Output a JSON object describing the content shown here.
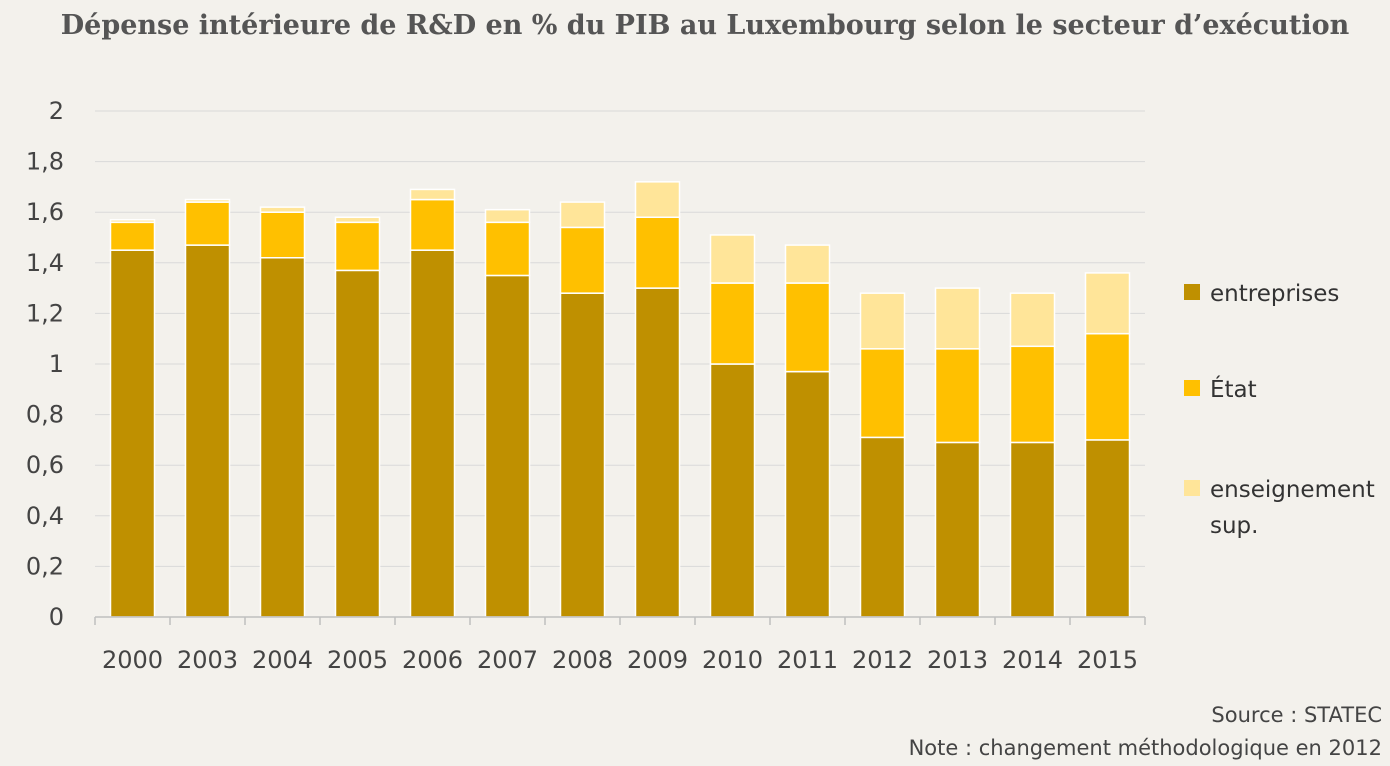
{
  "chart_data": {
    "type": "bar",
    "stacked": true,
    "title": "Dépense intérieure de R&D en % du PIB au Luxembourg selon le secteur d’exécution",
    "categories": [
      "2000",
      "2003",
      "2004",
      "2005",
      "2006",
      "2007",
      "2008",
      "2009",
      "2010",
      "2011",
      "2012",
      "2013",
      "2014",
      "2015"
    ],
    "series": [
      {
        "name": "entreprises",
        "color": "#bf9000",
        "values": [
          1.45,
          1.47,
          1.42,
          1.37,
          1.45,
          1.35,
          1.28,
          1.3,
          1.0,
          0.97,
          0.71,
          0.69,
          0.69,
          0.7
        ]
      },
      {
        "name": "État",
        "color": "#ffc000",
        "values": [
          0.11,
          0.17,
          0.18,
          0.19,
          0.2,
          0.21,
          0.26,
          0.28,
          0.32,
          0.35,
          0.35,
          0.37,
          0.38,
          0.42
        ]
      },
      {
        "name": "enseignement sup.",
        "color": "#ffe599",
        "values": [
          0.01,
          0.01,
          0.02,
          0.02,
          0.04,
          0.05,
          0.1,
          0.14,
          0.19,
          0.15,
          0.22,
          0.24,
          0.21,
          0.24
        ]
      }
    ],
    "ylim": [
      0,
      2
    ],
    "yticks": [
      "0",
      "0,2",
      "0,4",
      "0,6",
      "0,8",
      "1",
      "1,2",
      "1,4",
      "1,6",
      "1,8",
      "2"
    ],
    "grid": true,
    "legend_position": "right",
    "xlabel": "",
    "ylabel": ""
  },
  "footer": {
    "source": "Source : STATEC",
    "note": "Note : changement méthodologique en 2012"
  }
}
